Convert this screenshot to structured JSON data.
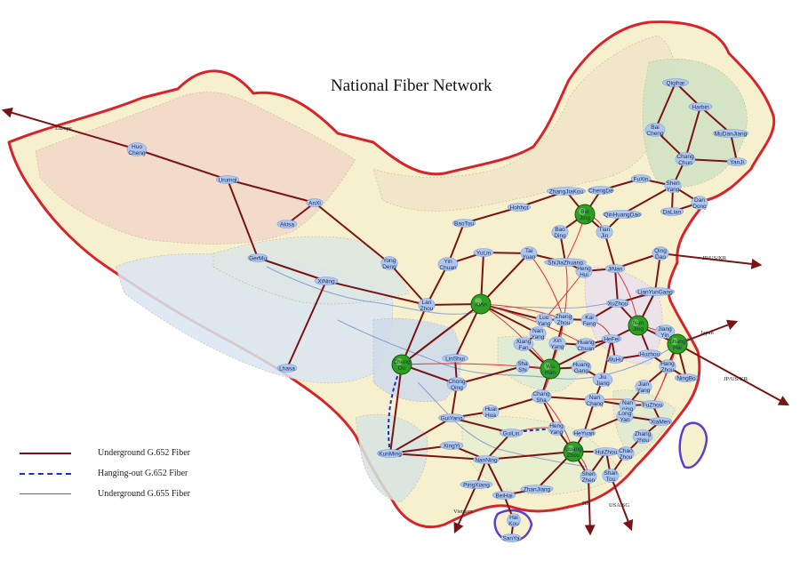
{
  "title": "National Fiber Network",
  "legend": [
    {
      "key": "g652",
      "label": "Underground G.652 Fiber"
    },
    {
      "key": "hang",
      "label": "Hanging-out G.652 Fiber"
    },
    {
      "key": "g655",
      "label": "Underground G.655 Fiber"
    }
  ],
  "colors": {
    "g652": "#7a1414",
    "hang": "#1b2fc9",
    "g655": "#e23232",
    "border": "#d8232a",
    "node": "#aec7f0",
    "hub": "#2f9e22"
  },
  "cities": [
    {
      "id": "huocheng",
      "lines": [
        "Huo",
        "Cheng"
      ]
    },
    {
      "id": "urumqi",
      "lines": [
        "Urumqi"
      ]
    },
    {
      "id": "anxi",
      "lines": [
        "AnXi"
      ]
    },
    {
      "id": "akisa",
      "lines": [
        "Akisa"
      ]
    },
    {
      "id": "germu",
      "lines": [
        "GerMu"
      ]
    },
    {
      "id": "xining",
      "lines": [
        "XiNing"
      ]
    },
    {
      "id": "lhasa",
      "lines": [
        "Lhasa"
      ]
    },
    {
      "id": "lanzhou",
      "lines": [
        "Lan",
        "Zhou"
      ]
    },
    {
      "id": "yongdeng",
      "lines": [
        "Yong",
        "Deng"
      ]
    },
    {
      "id": "yinchuan",
      "lines": [
        "Yin",
        "Chuan"
      ]
    },
    {
      "id": "baotou",
      "lines": [
        "BaoTou"
      ]
    },
    {
      "id": "hohhot",
      "lines": [
        "Hohhot"
      ]
    },
    {
      "id": "yulin",
      "lines": [
        "YuLin"
      ]
    },
    {
      "id": "taiyuan",
      "lines": [
        "Tai",
        "Yuan"
      ]
    },
    {
      "id": "zhangjiakou",
      "lines": [
        "ZhangJiaKou"
      ]
    },
    {
      "id": "chengde",
      "lines": [
        "ChengDe"
      ]
    },
    {
      "id": "baoding",
      "lines": [
        "Bao",
        "Ding"
      ]
    },
    {
      "id": "tianjin",
      "lines": [
        "Tian",
        "Jin"
      ]
    },
    {
      "id": "qinhuangdao",
      "lines": [
        "QinHuangDao"
      ]
    },
    {
      "id": "shijiazhuang",
      "lines": [
        "ShiJiaZhuang"
      ]
    },
    {
      "id": "fuxin",
      "lines": [
        "FuXin"
      ]
    },
    {
      "id": "shenyang",
      "lines": [
        "Shen",
        "Yang"
      ]
    },
    {
      "id": "dandong",
      "lines": [
        "Dan",
        "Dong"
      ]
    },
    {
      "id": "dalian",
      "lines": [
        "DaLian"
      ]
    },
    {
      "id": "qiqihar",
      "lines": [
        "Qiqihar"
      ]
    },
    {
      "id": "harbin",
      "lines": [
        "Harbin"
      ]
    },
    {
      "id": "baicheng",
      "lines": [
        "Bai",
        "Cheng"
      ]
    },
    {
      "id": "mudanjiang",
      "lines": [
        "MuDanJiang"
      ]
    },
    {
      "id": "changchun",
      "lines": [
        "Chang",
        "Chun"
      ]
    },
    {
      "id": "yanji",
      "lines": [
        "YanJi"
      ]
    },
    {
      "id": "qingdao",
      "lines": [
        "Qing",
        "Dao"
      ]
    },
    {
      "id": "jinan",
      "lines": [
        "JiNan"
      ]
    },
    {
      "id": "henghui",
      "lines": [
        "Heng",
        "Hui"
      ]
    },
    {
      "id": "lianyungang",
      "lines": [
        "LianYunGang"
      ]
    },
    {
      "id": "xuzhou",
      "lines": [
        "XuZhou"
      ]
    },
    {
      "id": "luoyang",
      "lines": [
        "Luo",
        "Yang"
      ]
    },
    {
      "id": "zhengzhou",
      "lines": [
        "Zheng",
        "Zhou"
      ]
    },
    {
      "id": "kaifeng",
      "lines": [
        "Kai",
        "Feng"
      ]
    },
    {
      "id": "nanyang",
      "lines": [
        "Nan",
        "Yang"
      ]
    },
    {
      "id": "xiangfan",
      "lines": [
        "Xiang",
        "Fan"
      ]
    },
    {
      "id": "xinyang",
      "lines": [
        "Xin",
        "Yang"
      ]
    },
    {
      "id": "huangchuan",
      "lines": [
        "Huang",
        "Chuan"
      ]
    },
    {
      "id": "hefei",
      "lines": [
        "HeFei"
      ]
    },
    {
      "id": "wuhu",
      "lines": [
        "WuHu"
      ]
    },
    {
      "id": "huzhou",
      "lines": [
        "Huzhou"
      ]
    },
    {
      "id": "jiangyin",
      "lines": [
        "Jiang",
        "Yin"
      ]
    },
    {
      "id": "hangzhou",
      "lines": [
        "Hang",
        "Zhou"
      ]
    },
    {
      "id": "ningbo",
      "lines": [
        "NingBo"
      ]
    },
    {
      "id": "linshui",
      "lines": [
        "LinShui"
      ]
    },
    {
      "id": "chongqing",
      "lines": [
        "Chong",
        "Qing"
      ]
    },
    {
      "id": "shashi",
      "lines": [
        "Sha",
        "Shi"
      ]
    },
    {
      "id": "huangang",
      "lines": [
        "Huang",
        "Gang"
      ]
    },
    {
      "id": "jiujiang",
      "lines": [
        "Jiu",
        "Jiang"
      ]
    },
    {
      "id": "changsha",
      "lines": [
        "Chang",
        "Sha"
      ]
    },
    {
      "id": "nanchang",
      "lines": [
        "Nan",
        "Chang"
      ]
    },
    {
      "id": "jianyang",
      "lines": [
        "Jian",
        "Yang"
      ]
    },
    {
      "id": "nanping",
      "lines": [
        "Nan",
        "ping"
      ]
    },
    {
      "id": "fuzhou",
      "lines": [
        "FuZhou"
      ]
    },
    {
      "id": "longyan",
      "lines": [
        "Long",
        "Yan"
      ]
    },
    {
      "id": "xiamen",
      "lines": [
        "XiaMen"
      ]
    },
    {
      "id": "zhangzhou",
      "lines": [
        "Zhang",
        "zhou"
      ]
    },
    {
      "id": "chaozhou",
      "lines": [
        "Chao",
        "Zhou"
      ]
    },
    {
      "id": "huaihua",
      "lines": [
        "Huai",
        "Hua"
      ]
    },
    {
      "id": "hengyang",
      "lines": [
        "Heng",
        "Yang"
      ]
    },
    {
      "id": "heyuan",
      "lines": [
        "HeYuan"
      ]
    },
    {
      "id": "guiyang",
      "lines": [
        "GuiYang"
      ]
    },
    {
      "id": "xingyi",
      "lines": [
        "XingYi"
      ]
    },
    {
      "id": "guilin",
      "lines": [
        "GuiLin"
      ]
    },
    {
      "id": "kunming",
      "lines": [
        "KunMing"
      ]
    },
    {
      "id": "nanning",
      "lines": [
        "NanNing"
      ]
    },
    {
      "id": "pingxiang",
      "lines": [
        "PingXiang"
      ]
    },
    {
      "id": "beihai",
      "lines": [
        "BeiHai"
      ]
    },
    {
      "id": "zhanjiang",
      "lines": [
        "ZhanJiang"
      ]
    },
    {
      "id": "huizhou",
      "lines": [
        "HuiZhou"
      ]
    },
    {
      "id": "shenzhen",
      "lines": [
        "Shen",
        "Zhen"
      ]
    },
    {
      "id": "shantou",
      "lines": [
        "Shan",
        "Tou"
      ]
    },
    {
      "id": "haikou",
      "lines": [
        "Hai",
        "Kou"
      ]
    },
    {
      "id": "sanya",
      "lines": [
        "SanYa"
      ]
    }
  ],
  "hubs": [
    {
      "id": "beijing",
      "lines": [
        "Bei",
        "Jing"
      ]
    },
    {
      "id": "xian",
      "lines": [
        "XiAn"
      ]
    },
    {
      "id": "chengdu",
      "lines": [
        "Cheng",
        "Du"
      ]
    },
    {
      "id": "wuhan",
      "lines": [
        "Wu",
        "Han"
      ]
    },
    {
      "id": "nanjing",
      "lines": [
        "Nan",
        "Jing"
      ]
    },
    {
      "id": "shanghai",
      "lines": [
        "Shang",
        "Hai"
      ]
    },
    {
      "id": "guangzhou",
      "lines": [
        "Guang",
        "Zhou"
      ]
    }
  ],
  "international": [
    {
      "id": "europe",
      "label": "Europe"
    },
    {
      "id": "jpuskr1",
      "label": "JP/US/KR"
    },
    {
      "id": "japan",
      "label": "Japan"
    },
    {
      "id": "jpuskr2",
      "label": "JP/US/KR"
    },
    {
      "id": "vietnam",
      "label": "Vietnam"
    },
    {
      "id": "hk",
      "label": "HK"
    },
    {
      "id": "ussg",
      "label": "USA/SG"
    }
  ]
}
